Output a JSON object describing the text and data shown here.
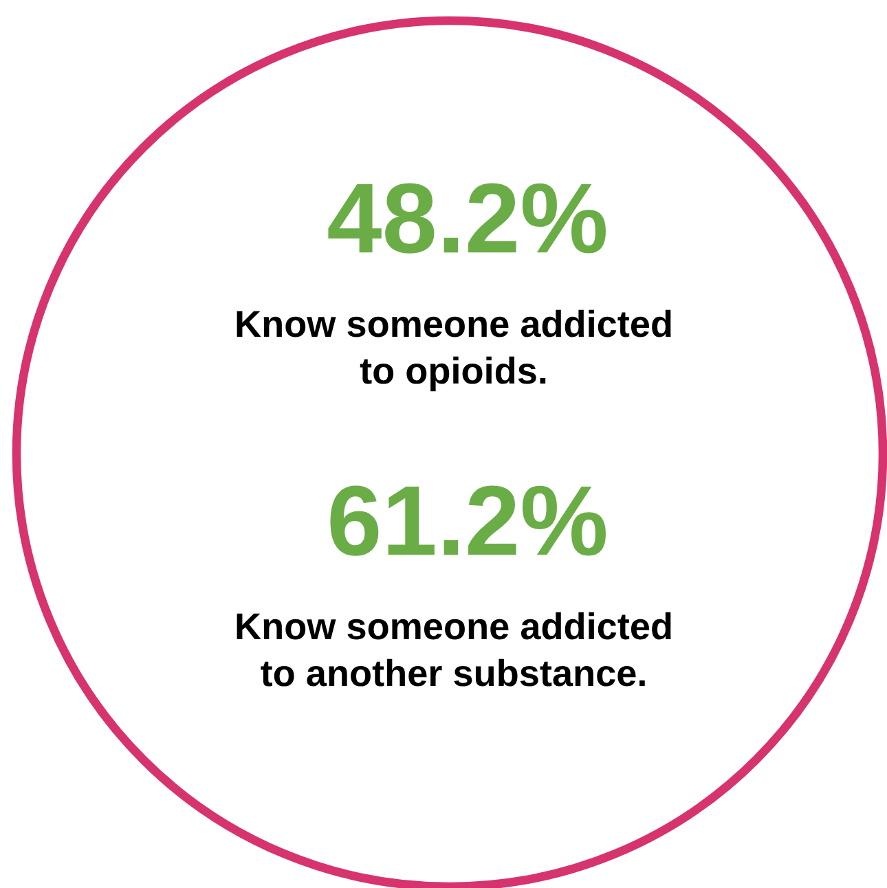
{
  "chart_data": {
    "type": "other",
    "categories": [
      "Know someone addicted\nto opioids.",
      "Know someone addicted\nto another substance."
    ],
    "values": [
      48.2,
      61.2
    ],
    "value_labels": [
      "48.2%",
      "61.2%"
    ],
    "color": "#6aad47"
  }
}
